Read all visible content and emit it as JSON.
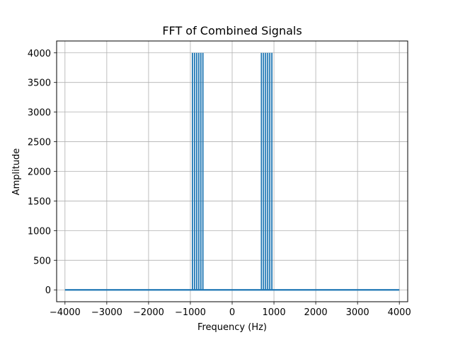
{
  "chart_data": {
    "type": "line",
    "title": "FFT of Combined Signals",
    "xlabel": "Frequency (Hz)",
    "ylabel": "Amplitude",
    "xlim": [
      -4200,
      4200
    ],
    "ylim": [
      -200,
      4200
    ],
    "xticks": [
      -4000,
      -3000,
      -2000,
      -1000,
      0,
      1000,
      2000,
      3000,
      4000
    ],
    "xtick_labels": [
      "−4000",
      "−3000",
      "−2000",
      "−1000",
      "0",
      "1000",
      "2000",
      "3000",
      "4000"
    ],
    "yticks": [
      0,
      500,
      1000,
      1500,
      2000,
      2500,
      3000,
      3500,
      4000
    ],
    "ytick_labels": [
      "0",
      "500",
      "1000",
      "1500",
      "2000",
      "2500",
      "3000",
      "3500",
      "4000"
    ],
    "grid": true,
    "series": [
      {
        "color": "#1f77b4",
        "baseline": {
          "x_range": [
            -4000,
            4000
          ],
          "y": 0
        },
        "peaks": [
          {
            "x": -950,
            "y": 4000
          },
          {
            "x": -900,
            "y": 4000
          },
          {
            "x": -850,
            "y": 4000
          },
          {
            "x": -800,
            "y": 4000
          },
          {
            "x": -750,
            "y": 4000
          },
          {
            "x": -700,
            "y": 4000
          },
          {
            "x": 700,
            "y": 4000
          },
          {
            "x": 750,
            "y": 4000
          },
          {
            "x": 800,
            "y": 4000
          },
          {
            "x": 850,
            "y": 4000
          },
          {
            "x": 900,
            "y": 4000
          },
          {
            "x": 950,
            "y": 4000
          }
        ]
      }
    ]
  }
}
